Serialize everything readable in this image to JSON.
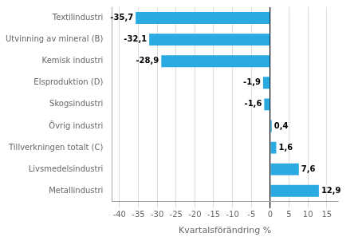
{
  "chart_data": {
    "type": "bar",
    "orientation": "horizontal",
    "categories": [
      "Textilindustri",
      "Utvinning av mineral (B)",
      "Kemisk industri",
      "Elsproduktion (D)",
      "Skogsindustri",
      "Övrig industri",
      "Tillverkningen totalt (C)",
      "Livsmedelsindustri",
      "Metallindustri"
    ],
    "values": [
      -35.7,
      -32.1,
      -28.9,
      -1.9,
      -1.6,
      0.4,
      1.6,
      7.6,
      12.9
    ],
    "value_labels": [
      "-35,7",
      "-32,1",
      "-28,9",
      "-1,9",
      "-1,6",
      "0,4",
      "1,6",
      "7,6",
      "12,9"
    ],
    "data_labels": true,
    "color": "#29abe2",
    "xlabel": "Kvartalsförändring %",
    "xlim": [
      -42,
      18
    ],
    "xticks": [
      -40,
      -35,
      -30,
      -25,
      -20,
      -15,
      -10,
      -5,
      0,
      5,
      10,
      15
    ],
    "grid": "x"
  }
}
